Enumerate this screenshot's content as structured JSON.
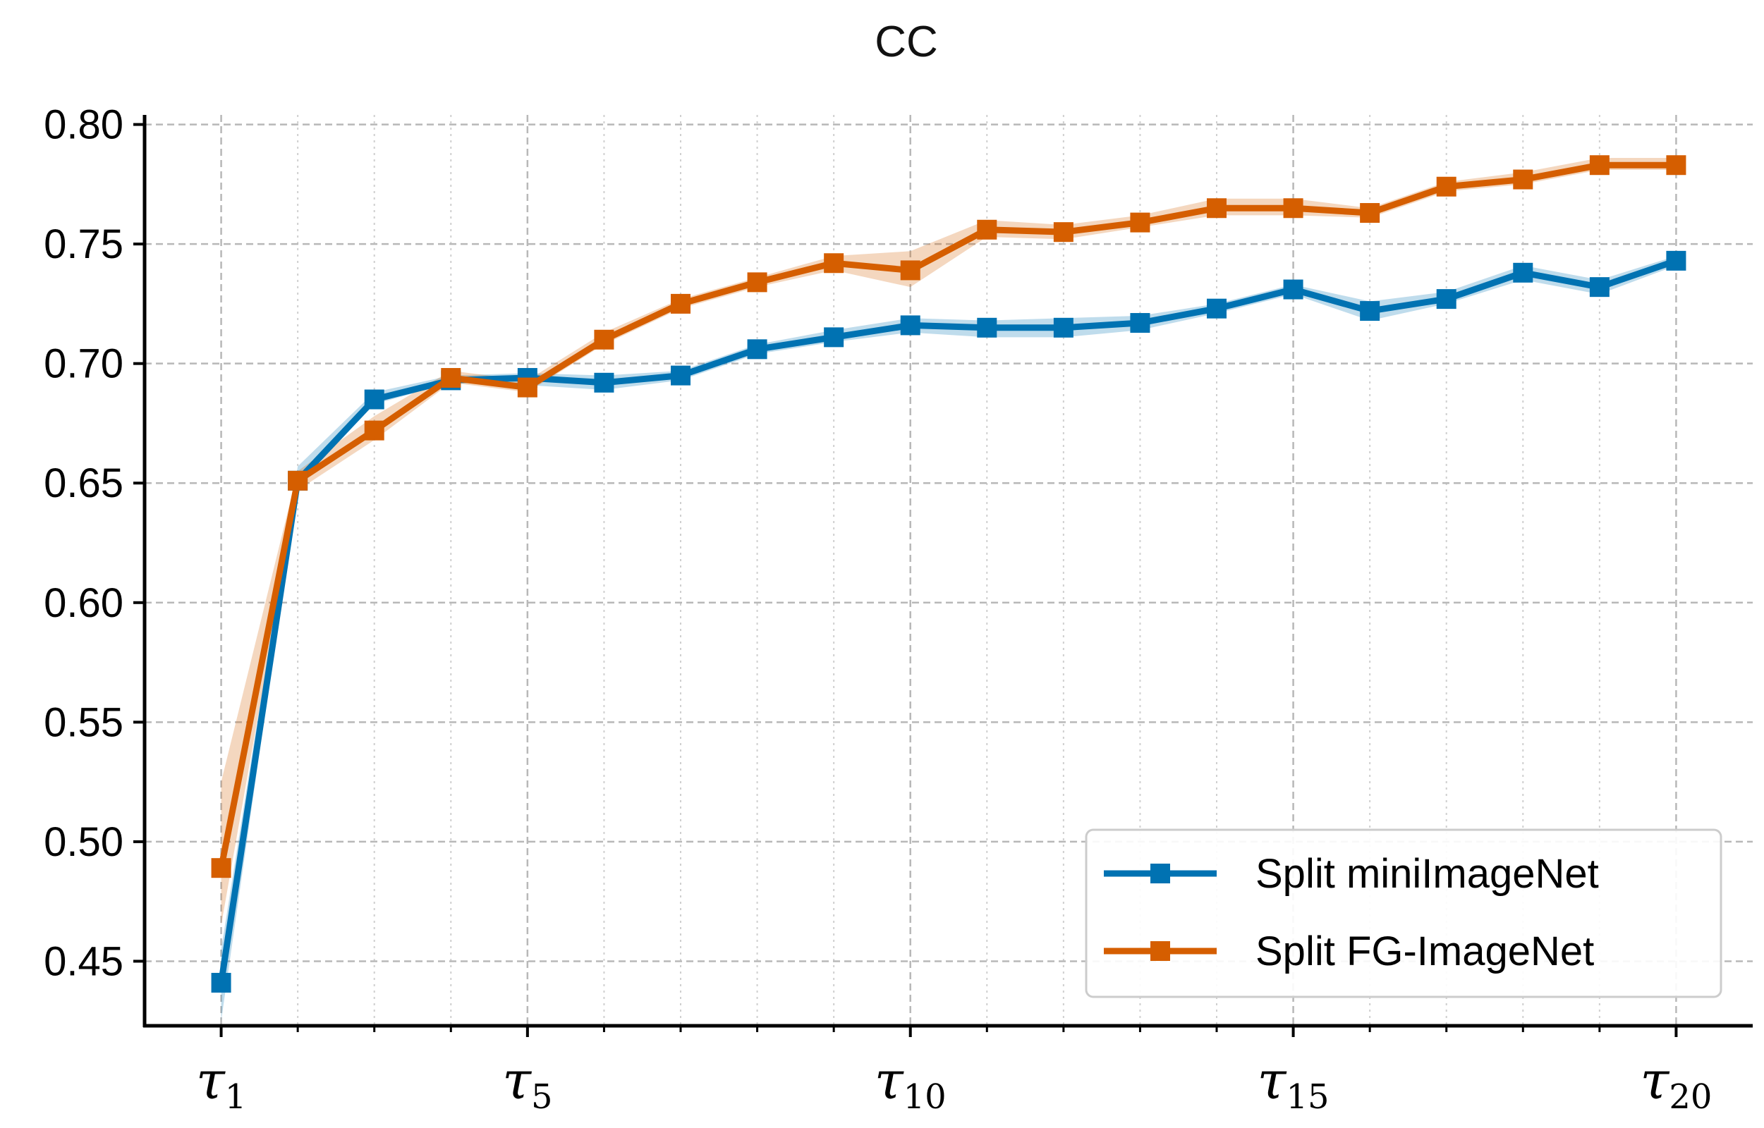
{
  "chart_data": {
    "type": "line",
    "title": "CC",
    "xlabel": "",
    "ylabel": "",
    "x": [
      1,
      2,
      3,
      4,
      5,
      6,
      7,
      8,
      9,
      10,
      11,
      12,
      13,
      14,
      15,
      16,
      17,
      18,
      19,
      20
    ],
    "x_tick_labels": [
      {
        "x": 1,
        "base": "τ",
        "sub": "1"
      },
      {
        "x": 5,
        "base": "τ",
        "sub": "5"
      },
      {
        "x": 10,
        "base": "τ",
        "sub": "10"
      },
      {
        "x": 15,
        "base": "τ",
        "sub": "15"
      },
      {
        "x": 20,
        "base": "τ",
        "sub": "20"
      }
    ],
    "y_ticks": [
      "0.45",
      "0.50",
      "0.55",
      "0.60",
      "0.65",
      "0.70",
      "0.75",
      "0.80"
    ],
    "xlim": [
      0,
      21
    ],
    "ylim": [
      0.423,
      0.804
    ],
    "grid": true,
    "legend_position": "bottom-right",
    "series": [
      {
        "name": "Split miniImageNet",
        "color": "#0072B2",
        "marker": "square",
        "values": [
          0.441,
          0.651,
          0.685,
          0.693,
          0.694,
          0.692,
          0.695,
          0.706,
          0.711,
          0.716,
          0.715,
          0.715,
          0.717,
          0.723,
          0.731,
          0.722,
          0.727,
          0.738,
          0.732,
          0.743
        ],
        "lower": [
          0.425,
          0.649,
          0.683,
          0.692,
          0.691,
          0.689,
          0.693,
          0.704,
          0.709,
          0.713,
          0.711,
          0.711,
          0.714,
          0.721,
          0.729,
          0.718,
          0.725,
          0.735,
          0.729,
          0.741
        ],
        "upper": [
          0.455,
          0.657,
          0.688,
          0.695,
          0.696,
          0.695,
          0.697,
          0.708,
          0.714,
          0.719,
          0.718,
          0.719,
          0.72,
          0.725,
          0.733,
          0.726,
          0.73,
          0.741,
          0.735,
          0.745
        ]
      },
      {
        "name": "Split FG-ImageNet",
        "color": "#D55E00",
        "marker": "square",
        "values": [
          0.489,
          0.651,
          0.672,
          0.694,
          0.69,
          0.71,
          0.725,
          0.734,
          0.742,
          0.739,
          0.756,
          0.755,
          0.759,
          0.765,
          0.765,
          0.763,
          0.774,
          0.777,
          0.783,
          0.783
        ],
        "lower": [
          0.465,
          0.647,
          0.668,
          0.692,
          0.688,
          0.708,
          0.723,
          0.732,
          0.739,
          0.732,
          0.753,
          0.752,
          0.757,
          0.762,
          0.762,
          0.761,
          0.772,
          0.775,
          0.781,
          0.781
        ],
        "upper": [
          0.525,
          0.655,
          0.678,
          0.697,
          0.693,
          0.713,
          0.727,
          0.736,
          0.745,
          0.747,
          0.76,
          0.758,
          0.762,
          0.769,
          0.769,
          0.765,
          0.776,
          0.78,
          0.786,
          0.786
        ]
      }
    ]
  }
}
